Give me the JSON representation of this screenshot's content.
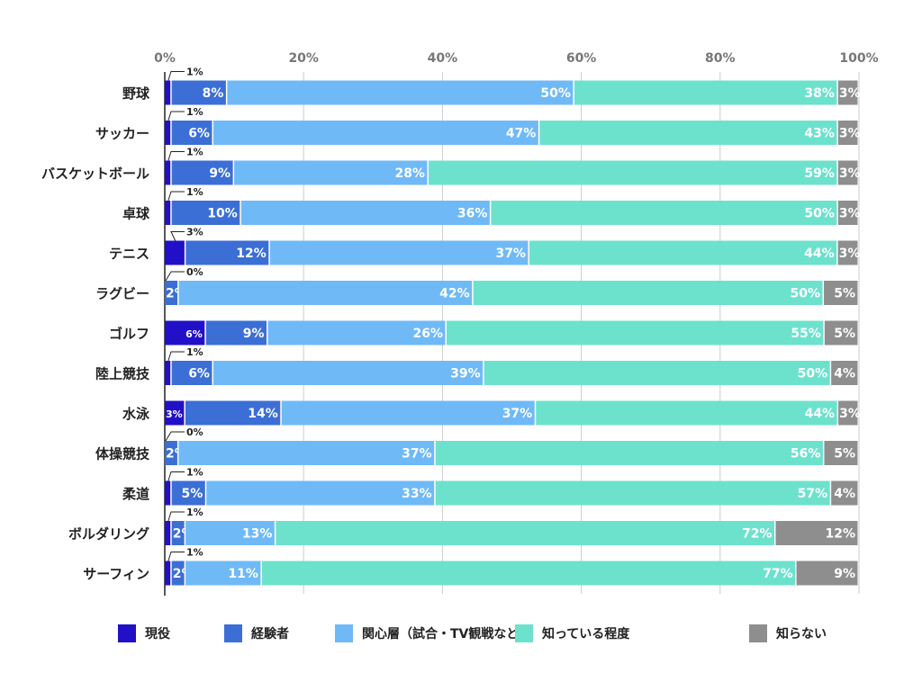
{
  "chart_data": {
    "type": "bar",
    "orientation": "horizontal",
    "stacked": true,
    "xlim": [
      0,
      100
    ],
    "x_ticks": [
      "0%",
      "20%",
      "40%",
      "60%",
      "80%",
      "100%"
    ],
    "grid": true,
    "legend_placement": "bottom",
    "categories": [
      "野球",
      "サッカー",
      "バスケットボール",
      "卓球",
      "テニス",
      "ラグビー",
      "ゴルフ",
      "陸上競技",
      "水泳",
      "体操競技",
      "柔道",
      "ボルダリング",
      "サーフィン"
    ],
    "series": [
      {
        "name": "現役",
        "color": "#2210c8",
        "values": [
          1,
          1,
          1,
          1,
          3,
          0,
          6,
          1,
          3,
          0,
          1,
          1,
          1
        ],
        "label_outside": [
          true,
          true,
          true,
          true,
          true,
          true,
          false,
          true,
          false,
          true,
          true,
          true,
          true
        ]
      },
      {
        "name": "経験者",
        "color": "#3b6fd6",
        "values": [
          8,
          6,
          9,
          10,
          12,
          2,
          9,
          6,
          14,
          2,
          5,
          2,
          2
        ]
      },
      {
        "name": "関心層（試合・TV観戦など）",
        "color": "#6fbaf6",
        "values": [
          50,
          47,
          28,
          36,
          37,
          42,
          26,
          39,
          37,
          37,
          33,
          13,
          11
        ]
      },
      {
        "name": "知っている程度",
        "color": "#6ce2cd",
        "values": [
          38,
          43,
          59,
          50,
          44,
          50,
          55,
          50,
          44,
          56,
          57,
          72,
          77
        ]
      },
      {
        "name": "知らない",
        "color": "#8e8e8e",
        "values": [
          3,
          3,
          3,
          3,
          3,
          5,
          5,
          4,
          3,
          5,
          4,
          12,
          9
        ]
      }
    ]
  }
}
